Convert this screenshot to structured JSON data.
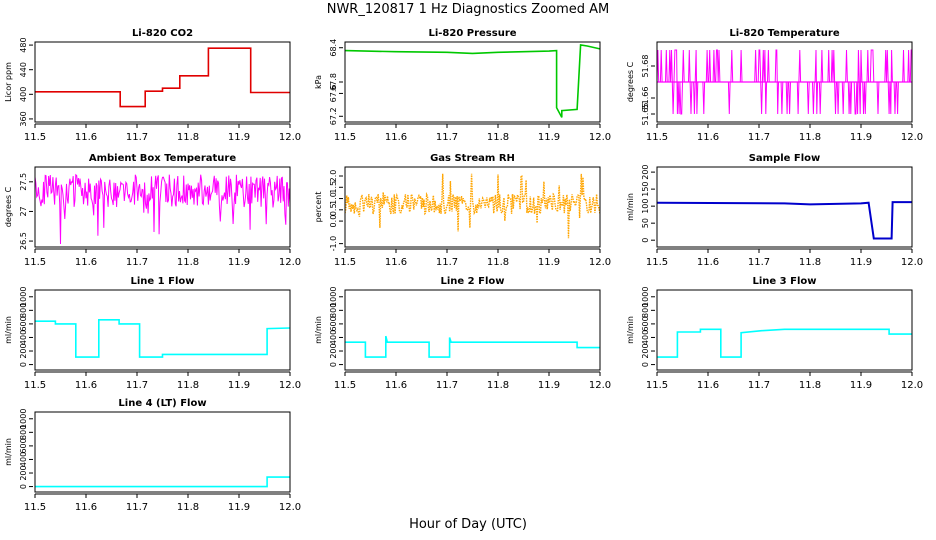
{
  "title": "NWR_120817  1 Hz Diagnostics Zoomed AM",
  "xlabel": "Hour of Day (UTC)",
  "colors": {
    "red": "#e00000",
    "green": "#00c800",
    "magenta": "#ff00ff",
    "orange": "#ffa500",
    "blue": "#0000cc",
    "cyan": "#00ffff"
  },
  "chart_data": [
    {
      "type": "line",
      "title": "Li-820 CO2",
      "ylabel": "Licor ppm",
      "color": "red",
      "xlim": [
        11.5,
        12.0
      ],
      "ylim": [
        355,
        485
      ],
      "xticks": [
        "11.5",
        "11.6",
        "11.7",
        "11.8",
        "11.9",
        "12.0"
      ],
      "yticks": [
        "360",
        "400",
        "440",
        "480"
      ],
      "series": [
        {
          "steps": [
            [
              11.5,
              404
            ],
            [
              11.667,
              404
            ],
            [
              11.667,
              380
            ],
            [
              11.716,
              380
            ],
            [
              11.716,
              405
            ],
            [
              11.75,
              405
            ],
            [
              11.75,
              410
            ],
            [
              11.784,
              410
            ],
            [
              11.784,
              430
            ],
            [
              11.84,
              430
            ],
            [
              11.84,
              475
            ],
            [
              11.923,
              475
            ],
            [
              11.923,
              403
            ],
            [
              12.0,
              403
            ]
          ]
        }
      ]
    },
    {
      "type": "line",
      "title": "Li-820 Pressure",
      "ylabel": "kPa",
      "color": "green",
      "xlim": [
        11.5,
        12.0
      ],
      "ylim": [
        67.1,
        68.5
      ],
      "xticks": [
        "11.5",
        "11.6",
        "11.7",
        "11.8",
        "11.9",
        "12.0"
      ],
      "yticks": [
        "67.2",
        "67.6",
        "67.8",
        "68.4"
      ],
      "series": [
        {
          "steps": [
            [
              11.5,
              68.35
            ],
            [
              11.6,
              68.33
            ],
            [
              11.7,
              68.32
            ],
            [
              11.75,
              68.3
            ],
            [
              11.8,
              68.32
            ],
            [
              11.85,
              68.33
            ],
            [
              11.9,
              68.34
            ],
            [
              11.915,
              68.35
            ],
            [
              11.915,
              67.35
            ],
            [
              11.925,
              67.18
            ],
            [
              11.925,
              67.3
            ],
            [
              11.955,
              67.32
            ],
            [
              11.962,
              68.45
            ],
            [
              11.975,
              68.43
            ],
            [
              12.0,
              68.38
            ]
          ]
        }
      ]
    },
    {
      "type": "line",
      "title": "Li-820 Temperature",
      "ylabel": "degrees C",
      "color": "magenta",
      "xlim": [
        11.5,
        12.0
      ],
      "ylim": [
        51.645,
        51.695
      ],
      "xticks": [
        "11.5",
        "11.6",
        "11.7",
        "11.8",
        "11.9",
        "12.0"
      ],
      "yticks": [
        "51.65",
        "51.66",
        "51.68"
      ],
      "series": [
        {
          "base": 51.67,
          "low": 51.65,
          "high": 51.69
        }
      ]
    },
    {
      "type": "line",
      "title": "Ambient Box Temperature",
      "ylabel": "degrees C",
      "color": "magenta",
      "xlim": [
        11.5,
        12.0
      ],
      "ylim": [
        26.4,
        27.75
      ],
      "xticks": [
        "11.5",
        "11.6",
        "11.7",
        "11.8",
        "11.9",
        "12.0"
      ],
      "yticks": [
        "26.5",
        "27",
        "27.5"
      ],
      "series": [
        {
          "base": 27.35,
          "low": 26.45,
          "high": 27.7
        }
      ]
    },
    {
      "type": "scatter",
      "title": "Gas Stream RH",
      "ylabel": "percent",
      "color": "orange",
      "xlim": [
        11.5,
        12.0
      ],
      "ylim": [
        -1.15,
        2.4
      ],
      "xticks": [
        "11.5",
        "11.6",
        "11.7",
        "11.8",
        "11.9",
        "12.0"
      ],
      "yticks": [
        "-1.0",
        "0.0",
        "0.5",
        "1.0",
        "1.5",
        "2.0"
      ],
      "series": [
        {
          "base": 0.75,
          "low": -0.8,
          "high": 2.1
        }
      ]
    },
    {
      "type": "line",
      "title": "Sample Flow",
      "ylabel": "ml/min",
      "color": "blue",
      "xlim": [
        11.5,
        12.0
      ],
      "ylim": [
        -20,
        215
      ],
      "xticks": [
        "11.5",
        "11.6",
        "11.7",
        "11.8",
        "11.9",
        "12.0"
      ],
      "yticks": [
        "0",
        "50",
        "100",
        "150",
        "200"
      ],
      "series": [
        {
          "steps": [
            [
              11.5,
              110
            ],
            [
              11.75,
              108
            ],
            [
              11.8,
              105
            ],
            [
              11.9,
              108
            ],
            [
              11.915,
              110
            ],
            [
              11.925,
              5
            ],
            [
              11.96,
              5
            ],
            [
              11.962,
              112
            ],
            [
              12.0,
              112
            ]
          ]
        }
      ]
    },
    {
      "type": "line",
      "title": "Line 1 Flow",
      "ylabel": "ml/min",
      "color": "cyan",
      "xlim": [
        11.5,
        12.0
      ],
      "ylim": [
        -80,
        1100
      ],
      "xticks": [
        "11.5",
        "11.6",
        "11.7",
        "11.8",
        "11.9",
        "12.0"
      ],
      "yticks": [
        "0",
        "200",
        "400",
        "600",
        "800",
        "1000"
      ],
      "series": [
        {
          "steps": [
            [
              11.5,
              640
            ],
            [
              11.54,
              640
            ],
            [
              11.54,
              600
            ],
            [
              11.58,
              600
            ],
            [
              11.58,
              110
            ],
            [
              11.625,
              110
            ],
            [
              11.625,
              660
            ],
            [
              11.665,
              660
            ],
            [
              11.665,
              600
            ],
            [
              11.705,
              600
            ],
            [
              11.705,
              110
            ],
            [
              11.75,
              110
            ],
            [
              11.75,
              150
            ],
            [
              11.955,
              150
            ],
            [
              11.955,
              530
            ],
            [
              12.0,
              540
            ]
          ]
        }
      ]
    },
    {
      "type": "line",
      "title": "Line 2 Flow",
      "ylabel": "ml/min",
      "color": "cyan",
      "xlim": [
        11.5,
        12.0
      ],
      "ylim": [
        -80,
        1100
      ],
      "xticks": [
        "11.5",
        "11.6",
        "11.7",
        "11.8",
        "11.9",
        "12.0"
      ],
      "yticks": [
        "0",
        "200",
        "400",
        "600",
        "800",
        "1000"
      ],
      "series": [
        {
          "steps": [
            [
              11.5,
              330
            ],
            [
              11.54,
              330
            ],
            [
              11.54,
              110
            ],
            [
              11.58,
              110
            ],
            [
              11.58,
              420
            ],
            [
              11.583,
              330
            ],
            [
              11.665,
              330
            ],
            [
              11.665,
              110
            ],
            [
              11.705,
              110
            ],
            [
              11.705,
              400
            ],
            [
              11.708,
              330
            ],
            [
              11.955,
              330
            ],
            [
              11.955,
              250
            ],
            [
              12.0,
              250
            ]
          ]
        }
      ]
    },
    {
      "type": "line",
      "title": "Line 3 Flow",
      "ylabel": "ml/min",
      "color": "cyan",
      "xlim": [
        11.5,
        12.0
      ],
      "ylim": [
        -80,
        1100
      ],
      "xticks": [
        "11.5",
        "11.6",
        "11.7",
        "11.8",
        "11.9",
        "12.0"
      ],
      "yticks": [
        "0",
        "200",
        "400",
        "600",
        "800",
        "1000"
      ],
      "series": [
        {
          "steps": [
            [
              11.5,
              110
            ],
            [
              11.54,
              110
            ],
            [
              11.54,
              480
            ],
            [
              11.585,
              480
            ],
            [
              11.585,
              520
            ],
            [
              11.625,
              520
            ],
            [
              11.625,
              110
            ],
            [
              11.665,
              110
            ],
            [
              11.665,
              470
            ],
            [
              11.705,
              500
            ],
            [
              11.75,
              520
            ],
            [
              11.9,
              520
            ],
            [
              11.955,
              520
            ],
            [
              11.955,
              450
            ],
            [
              12.0,
              450
            ]
          ]
        }
      ]
    },
    {
      "type": "line",
      "title": "Line 4 (LT) Flow",
      "ylabel": "ml/min",
      "color": "cyan",
      "xlim": [
        11.5,
        12.0
      ],
      "ylim": [
        -80,
        1100
      ],
      "xticks": [
        "11.5",
        "11.6",
        "11.7",
        "11.8",
        "11.9",
        "12.0"
      ],
      "yticks": [
        "0",
        "200",
        "400",
        "600",
        "800",
        "1000"
      ],
      "series": [
        {
          "steps": [
            [
              11.5,
              0
            ],
            [
              11.955,
              0
            ],
            [
              11.955,
              140
            ],
            [
              12.0,
              140
            ]
          ]
        }
      ]
    }
  ]
}
